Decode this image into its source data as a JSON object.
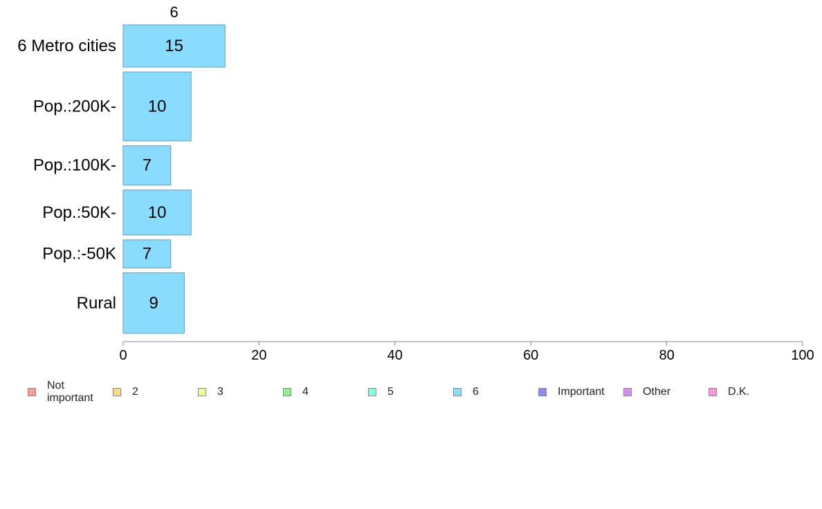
{
  "chart_data": {
    "type": "bar",
    "orientation": "horizontal",
    "stacked": true,
    "column_header": "6",
    "categories": [
      "6 Metro cities",
      "Pop.:200K-",
      "Pop.:100K-",
      "Pop.:50K-",
      "Pop.:-50K",
      "Rural"
    ],
    "series": [
      {
        "name": "6",
        "values": [
          15,
          10,
          7,
          10,
          7,
          9
        ]
      }
    ],
    "data_labels": [
      "15",
      "10",
      "7",
      "10",
      "7",
      "9"
    ],
    "bar_weights": [
      60,
      98,
      56,
      64,
      40,
      86
    ],
    "xlim": [
      0,
      100
    ],
    "xticks": [
      "0",
      "20",
      "40",
      "60",
      "80",
      "100"
    ],
    "legend_placement": "bottom",
    "grid": false
  },
  "legend": [
    {
      "label": "Not important",
      "color": "#ff9a9a"
    },
    {
      "label": "2",
      "color": "#ffd98a"
    },
    {
      "label": "3",
      "color": "#e3ff9a"
    },
    {
      "label": "4",
      "color": "#8ef08e"
    },
    {
      "label": "5",
      "color": "#8cffe0"
    },
    {
      "label": "6",
      "color": "#8adcff"
    },
    {
      "label": "Important",
      "color": "#8c8cf5"
    },
    {
      "label": "Other",
      "color": "#dc8cf5"
    },
    {
      "label": "D.K.",
      "color": "#ff96dc"
    }
  ],
  "colors": {
    "bar_fill": "#8adcff",
    "bar_stroke": "#6a9bb8",
    "axis": "#888888",
    "text": "#000000"
  }
}
